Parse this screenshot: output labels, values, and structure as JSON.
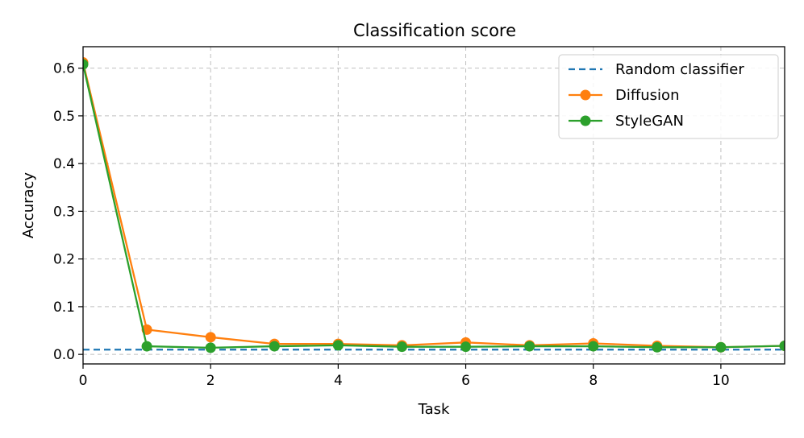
{
  "chart_data": {
    "type": "line",
    "title": "Classification score",
    "xlabel": "Task",
    "ylabel": "Accuracy",
    "xlim": [
      0,
      11
    ],
    "ylim": [
      -0.02,
      0.645
    ],
    "xticks": [
      0,
      2,
      4,
      6,
      8,
      10
    ],
    "yticks": [
      0.0,
      0.1,
      0.2,
      0.3,
      0.4,
      0.5,
      0.6
    ],
    "grid": true,
    "legend_position": "top-right",
    "series": [
      {
        "name": "Random classifier",
        "style": "dashed",
        "color": "#1f77b4",
        "x": [
          0,
          11
        ],
        "y": [
          0.01,
          0.01
        ]
      },
      {
        "name": "Diffusion",
        "style": "solid-marker",
        "color": "#ff7f0e",
        "x": [
          0,
          1,
          2,
          3,
          4,
          5,
          6,
          7,
          8,
          9,
          10,
          11
        ],
        "y": [
          0.612,
          0.052,
          0.036,
          0.022,
          0.022,
          0.019,
          0.025,
          0.019,
          0.023,
          0.018,
          0.015,
          0.018
        ]
      },
      {
        "name": "StyleGAN",
        "style": "solid-marker",
        "color": "#2ca02c",
        "x": [
          0,
          1,
          2,
          3,
          4,
          5,
          6,
          7,
          8,
          9,
          10,
          11
        ],
        "y": [
          0.608,
          0.017,
          0.014,
          0.017,
          0.019,
          0.016,
          0.016,
          0.017,
          0.017,
          0.015,
          0.015,
          0.018
        ]
      }
    ]
  }
}
